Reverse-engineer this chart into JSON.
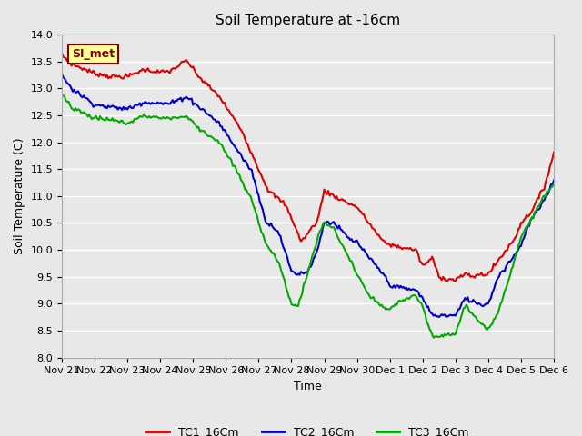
{
  "title": "Soil Temperature at -16cm",
  "xlabel": "Time",
  "ylabel": "Soil Temperature (C)",
  "ylim": [
    8.0,
    14.0
  ],
  "yticks": [
    8.0,
    8.5,
    9.0,
    9.5,
    10.0,
    10.5,
    11.0,
    11.5,
    12.0,
    12.5,
    13.0,
    13.5,
    14.0
  ],
  "x_tick_labels": [
    "Nov 21",
    "Nov 22",
    "Nov 23",
    "Nov 24",
    "Nov 25",
    "Nov 26",
    "Nov 27",
    "Nov 28",
    "Nov 29",
    "Nov 30",
    "Dec 1",
    "Dec 2",
    "Dec 3",
    "Dec 4",
    "Dec 5",
    "Dec 6"
  ],
  "background_color": "#e8e8e8",
  "plot_bg_color": "#e8e8e8",
  "grid_color": "#ffffff",
  "annotation_text": "SI_met",
  "annotation_bg": "#ffff99",
  "annotation_border": "#800000",
  "colors": {
    "TC1": "#dd0000",
    "TC2": "#0000cc",
    "TC3": "#00aa00"
  },
  "legend_labels": [
    "TC1_16Cm",
    "TC2_16Cm",
    "TC3_16Cm"
  ],
  "n_points": 361,
  "tc1_t": [
    0,
    0.3,
    1,
    1.5,
    2,
    2.5,
    3,
    3.3,
    3.8,
    4.2,
    4.8,
    5.5,
    6,
    6.3,
    6.8,
    7.0,
    7.3,
    7.8,
    8.0,
    8.3,
    8.8,
    9.0,
    9.3,
    9.8,
    10.0,
    10.3,
    10.8,
    11.0,
    11.3,
    11.5,
    11.8,
    12.0,
    12.3,
    12.5,
    12.8,
    13.0,
    13.3,
    13.8,
    14.0,
    14.3,
    14.7,
    15.0
  ],
  "tc1_v": [
    13.62,
    13.45,
    13.28,
    13.22,
    13.22,
    13.35,
    13.3,
    13.32,
    13.52,
    13.2,
    12.85,
    12.2,
    11.5,
    11.1,
    10.85,
    10.6,
    10.15,
    10.55,
    11.1,
    11.0,
    10.85,
    10.8,
    10.55,
    10.15,
    10.1,
    10.05,
    10.0,
    9.7,
    9.85,
    9.5,
    9.45,
    9.45,
    9.55,
    9.5,
    9.55,
    9.55,
    9.8,
    10.2,
    10.5,
    10.7,
    11.15,
    11.8
  ],
  "tc2_t": [
    0,
    0.3,
    1,
    1.5,
    2,
    2.5,
    3,
    3.3,
    3.8,
    4.2,
    4.8,
    5.3,
    5.8,
    6.2,
    6.6,
    7.0,
    7.2,
    7.5,
    7.8,
    8.0,
    8.3,
    8.8,
    9.0,
    9.3,
    9.8,
    10.0,
    10.3,
    10.8,
    11.0,
    11.3,
    11.8,
    12.0,
    12.3,
    12.8,
    13.0,
    13.3,
    13.8,
    14.0,
    14.3,
    14.7,
    15.0
  ],
  "tc2_v": [
    13.25,
    13.0,
    12.7,
    12.65,
    12.62,
    12.75,
    12.72,
    12.72,
    12.85,
    12.65,
    12.35,
    11.9,
    11.45,
    10.55,
    10.35,
    9.6,
    9.55,
    9.6,
    10.0,
    10.52,
    10.5,
    10.18,
    10.15,
    9.9,
    9.55,
    9.35,
    9.3,
    9.25,
    9.1,
    8.78,
    8.78,
    8.78,
    9.1,
    8.98,
    9.0,
    9.5,
    9.9,
    10.1,
    10.55,
    10.9,
    11.3
  ],
  "tc3_t": [
    0,
    0.3,
    1,
    1.5,
    2,
    2.5,
    3,
    3.3,
    3.8,
    4.2,
    4.8,
    5.3,
    5.8,
    6.2,
    6.6,
    7.0,
    7.2,
    7.5,
    7.8,
    8.0,
    8.3,
    8.8,
    9.0,
    9.3,
    9.8,
    10.0,
    10.3,
    10.8,
    11.0,
    11.3,
    11.8,
    12.0,
    12.3,
    12.8,
    13.0,
    13.3,
    13.8,
    14.0,
    14.3,
    14.7,
    15.0
  ],
  "tc3_v": [
    12.9,
    12.65,
    12.45,
    12.42,
    12.35,
    12.5,
    12.45,
    12.45,
    12.48,
    12.25,
    12.0,
    11.5,
    10.9,
    10.15,
    9.78,
    9.0,
    8.95,
    9.58,
    10.22,
    10.52,
    10.38,
    9.8,
    9.55,
    9.2,
    8.92,
    8.88,
    9.05,
    9.15,
    8.92,
    8.38,
    8.42,
    8.45,
    8.98,
    8.6,
    8.5,
    8.85,
    9.8,
    10.25,
    10.55,
    11.0,
    11.25
  ]
}
